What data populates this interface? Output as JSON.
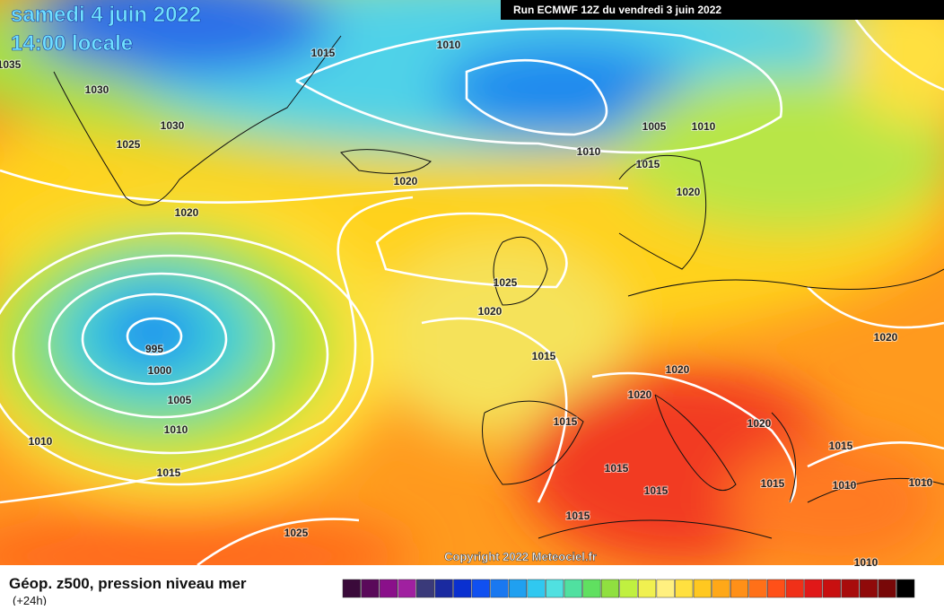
{
  "header": {
    "date": "samedi 4 juin 2022",
    "time": "14:00 locale",
    "run": "Run ECMWF 12Z du vendredi 3 juin 2022"
  },
  "isobar_labels": [
    "1035",
    "1030",
    "1015",
    "1010",
    "1030",
    "1025",
    "1020",
    "1020",
    "1005",
    "1010",
    "1010",
    "1015",
    "1020",
    "1025",
    "1020",
    "995",
    "1000",
    "1005",
    "1010",
    "1010",
    "1015",
    "1015",
    "1020",
    "1020",
    "1015",
    "1020",
    "1020",
    "1015",
    "1015",
    "1015",
    "1015",
    "1010",
    "1010",
    "1015",
    "1025",
    "1010"
  ],
  "copyright": "Copyright 2022 Meteociel.fr",
  "footer": {
    "title": "Géop. z500, pression niveau mer",
    "lead": "(+24h)"
  }
}
